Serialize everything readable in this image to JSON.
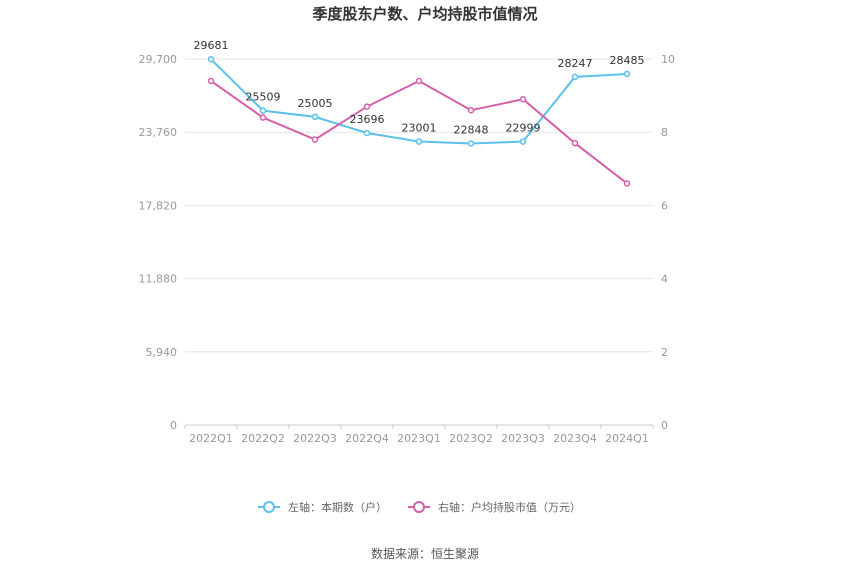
{
  "chart_data": {
    "type": "line",
    "title": "季度股东户数、户均持股市值情况",
    "categories": [
      "2022Q1",
      "2022Q2",
      "2022Q3",
      "2022Q4",
      "2023Q1",
      "2023Q2",
      "2023Q3",
      "2023Q4",
      "2024Q1"
    ],
    "left_axis": {
      "ylim": [
        0,
        29700
      ],
      "ticks": [
        "0",
        "5,940",
        "11,880",
        "17,820",
        "23,760",
        "29,700"
      ]
    },
    "right_axis": {
      "ylim": [
        0,
        10
      ],
      "ticks": [
        "0",
        "2",
        "4",
        "6",
        "8",
        "10"
      ]
    },
    "series": [
      {
        "name": "左轴：本期数（户）",
        "axis": "left",
        "color": "#5bc0eb",
        "values": [
          29681,
          25509,
          25005,
          23696,
          23001,
          22848,
          22999,
          28247,
          28485
        ],
        "labels": [
          "29681",
          "25509",
          "25005",
          "23696",
          "23001",
          "22848",
          "22999",
          "28247",
          "28485"
        ]
      },
      {
        "name": "右轴：户均持股市值（万元）",
        "axis": "right",
        "color": "#d65fa8",
        "values": [
          9.4,
          8.4,
          7.8,
          8.7,
          9.4,
          8.6,
          8.9,
          7.7,
          6.6
        ]
      }
    ],
    "grid": true,
    "legend": "bottom"
  },
  "source": "数据来源：恒生聚源"
}
